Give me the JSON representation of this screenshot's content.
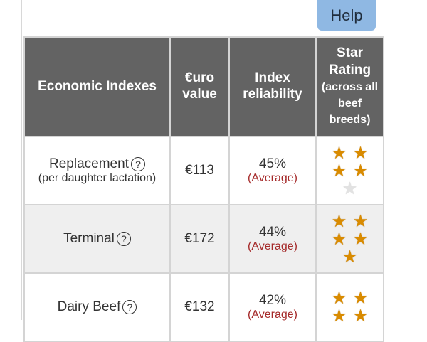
{
  "help_button": "Help",
  "table": {
    "headers": [
      "Economic Indexes",
      "€uro value",
      "Index reliability"
    ],
    "star_header": {
      "title": "Star Rating",
      "note": "(across all beef breeds)"
    },
    "rows": [
      {
        "name": "Replacement",
        "sub": "(per daughter lactation)",
        "value": "€113",
        "reliability": "45%",
        "reliability_label": "(Average)",
        "stars": [
          "filled",
          "filled",
          "filled",
          "filled",
          "empty"
        ]
      },
      {
        "name": "Terminal",
        "sub": "",
        "value": "€172",
        "reliability": "44%",
        "reliability_label": "(Average)",
        "stars": [
          "filled",
          "filled",
          "filled",
          "filled",
          "filled"
        ]
      },
      {
        "name": "Dairy Beef",
        "sub": "",
        "value": "€132",
        "reliability": "42%",
        "reliability_label": "(Average)",
        "stars": [
          "filled",
          "filled",
          "filled",
          "filled"
        ]
      }
    ]
  },
  "colors": {
    "header_bg": "#636363",
    "star": "#d98b00",
    "help_bg": "#8fb8e3",
    "reliability_label": "#a52a2a"
  },
  "icons": {
    "info": "question-circle-icon",
    "star": "star-icon"
  }
}
